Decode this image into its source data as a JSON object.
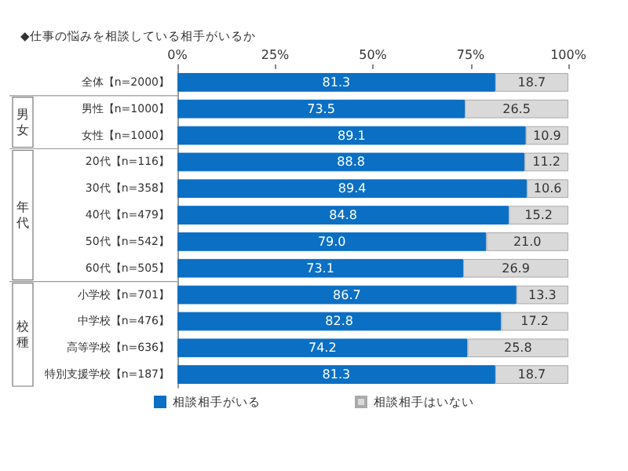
{
  "chart_data": {
    "type": "bar",
    "orientation": "horizontal",
    "stacked": true,
    "title": "◆仕事の悩みを相談している相手がいるか",
    "categories": [
      "全体【n=2000】",
      "男性【n=1000】",
      "女性【n=1000】",
      "20代【n=116】",
      "30代【n=358】",
      "40代【n=479】",
      "50代【n=542】",
      "60代【n=505】",
      "小学校【n=701】",
      "中学校【n=476】",
      "高等学校【n=636】",
      "特別支援学校【n=187】"
    ],
    "series": [
      {
        "name": "相談相手がいる",
        "color": "#0b6fc4",
        "values": [
          81.3,
          73.5,
          89.1,
          88.8,
          89.4,
          84.8,
          79.0,
          73.1,
          86.7,
          82.8,
          74.2,
          81.3
        ],
        "value_labels": [
          "81.3",
          "73.5",
          "89.1",
          "88.8",
          "89.4",
          "84.8",
          "79.0",
          "73.1",
          "86.7",
          "82.8",
          "74.2",
          "81.3"
        ]
      },
      {
        "name": "相談相手はいない",
        "color": "#d9d9d9",
        "values": [
          18.7,
          26.5,
          10.9,
          11.2,
          10.6,
          15.2,
          21.0,
          26.9,
          13.3,
          17.2,
          25.8,
          18.7
        ],
        "value_labels": [
          "18.7",
          "26.5",
          "10.9",
          "11.2",
          "10.6",
          "15.2",
          "21.0",
          "26.9",
          "13.3",
          "17.2",
          "25.8",
          "18.7"
        ]
      }
    ],
    "xlim": [
      0,
      100
    ],
    "xticks": [
      {
        "value": 0,
        "label": "0%"
      },
      {
        "value": 25,
        "label": "25%"
      },
      {
        "value": 50,
        "label": "50%"
      },
      {
        "value": 75,
        "label": "75%"
      },
      {
        "value": 100,
        "label": "100%"
      }
    ],
    "grid": false,
    "legend": "bottom",
    "annotations": [
      "男女",
      "年代",
      "校種"
    ]
  }
}
